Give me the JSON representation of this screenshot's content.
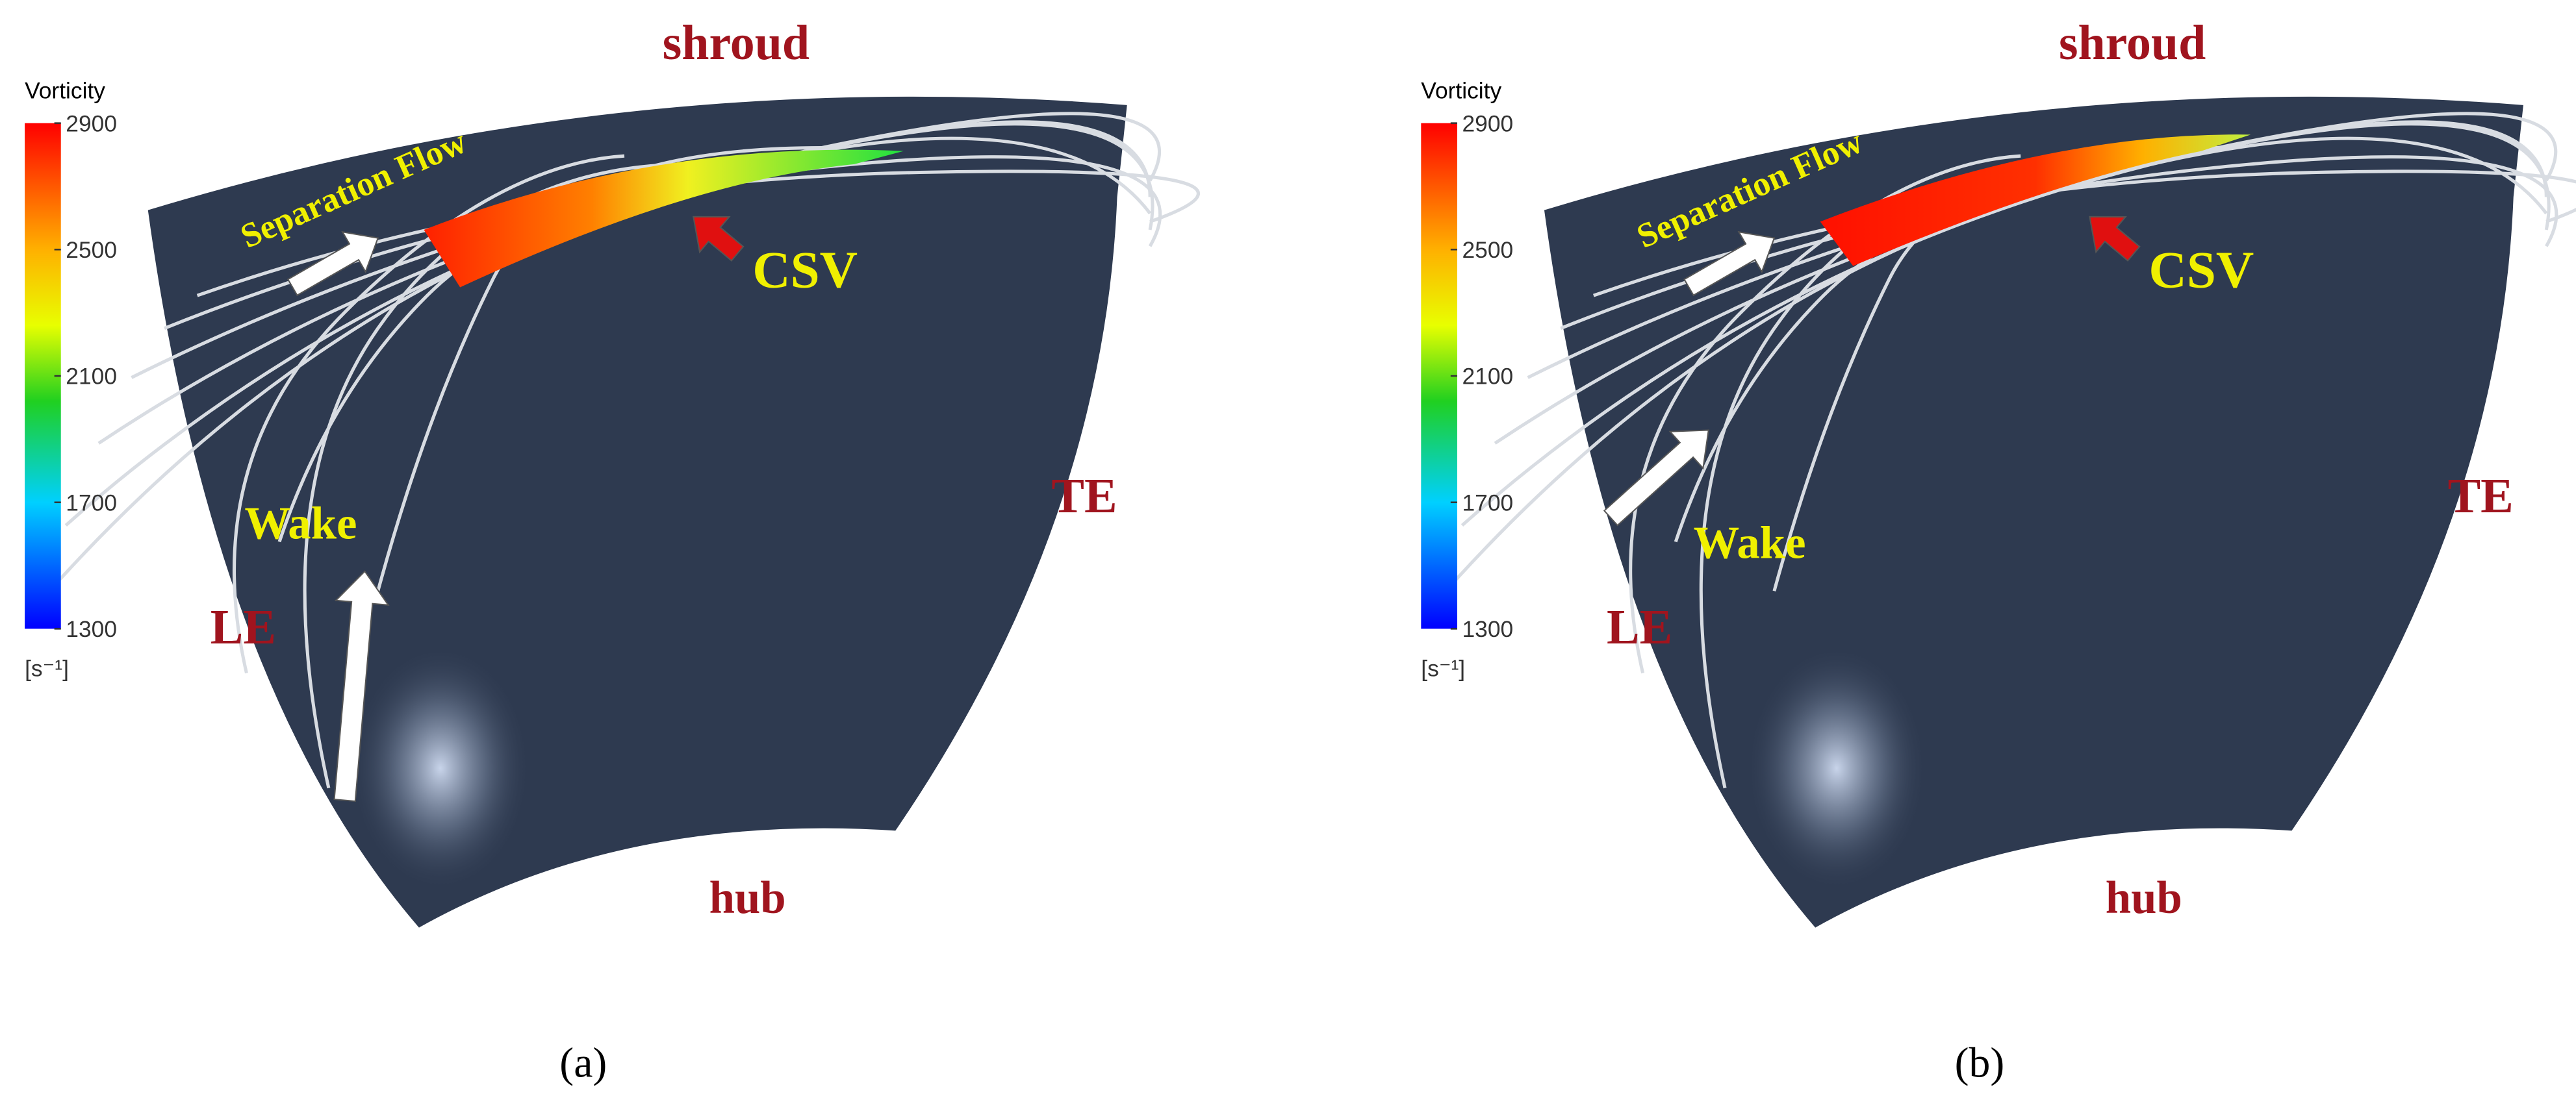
{
  "panels": [
    {
      "colorbar": {
        "title": "Vorticity",
        "ticks": [
          2900,
          2500,
          2100,
          1700,
          1300
        ],
        "unit": "[s⁻¹]"
      },
      "labels": {
        "shroud": "shroud",
        "hub": "hub",
        "le": "LE",
        "te": "TE",
        "separation": "Separation Flow",
        "csv": "CSV",
        "wake": "Wake"
      },
      "caption": "(a)"
    },
    {
      "colorbar": {
        "title": "Vorticity",
        "ticks": [
          2900,
          2500,
          2100,
          1700,
          1300
        ],
        "unit": "[s⁻¹]"
      },
      "labels": {
        "shroud": "shroud",
        "hub": "hub",
        "le": "LE",
        "te": "TE",
        "separation": "Separation Flow",
        "csv": "CSV",
        "wake": "Wake"
      },
      "caption": "(b)"
    }
  ]
}
